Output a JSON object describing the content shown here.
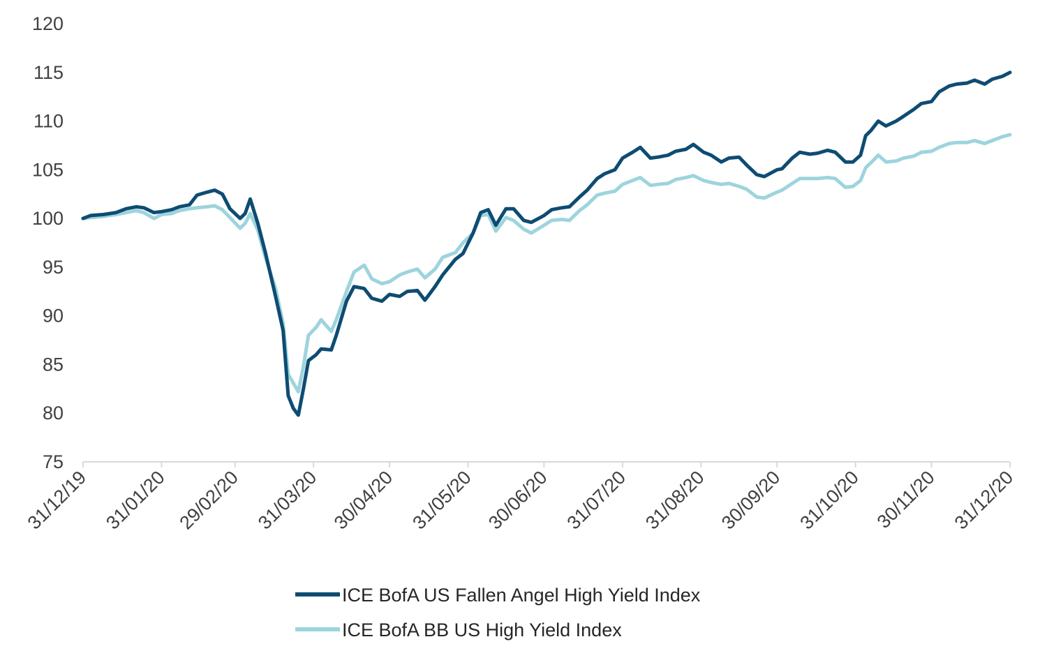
{
  "chart_data": {
    "type": "line",
    "title": "",
    "xlabel": "",
    "ylabel": "",
    "ylim": [
      75,
      120
    ],
    "yticks": [
      75,
      80,
      85,
      90,
      95,
      100,
      105,
      110,
      115,
      120
    ],
    "x_tick_labels": [
      "31/12/19",
      "31/01/20",
      "29/02/20",
      "31/03/20",
      "30/04/20",
      "31/05/20",
      "30/06/20",
      "31/07/20",
      "31/08/20",
      "30/09/20",
      "31/10/20",
      "30/11/20",
      "31/12/20"
    ],
    "grid": false,
    "legend_position": "bottom",
    "series": [
      {
        "name": "ICE BofA US Fallen Angel High Yield Index",
        "color": "#0e4c72",
        "points": [
          [
            "2019-12-31",
            100.0
          ],
          [
            "2020-01-03",
            100.3
          ],
          [
            "2020-01-08",
            100.4
          ],
          [
            "2020-01-13",
            100.6
          ],
          [
            "2020-01-17",
            101.0
          ],
          [
            "2020-01-21",
            101.2
          ],
          [
            "2020-01-24",
            101.1
          ],
          [
            "2020-01-28",
            100.6
          ],
          [
            "2020-01-31",
            100.7
          ],
          [
            "2020-02-04",
            100.9
          ],
          [
            "2020-02-07",
            101.2
          ],
          [
            "2020-02-11",
            101.4
          ],
          [
            "2020-02-14",
            102.4
          ],
          [
            "2020-02-18",
            102.7
          ],
          [
            "2020-02-21",
            102.9
          ],
          [
            "2020-02-24",
            102.5
          ],
          [
            "2020-02-27",
            101.0
          ],
          [
            "2020-03-02",
            100.0
          ],
          [
            "2020-03-04",
            100.5
          ],
          [
            "2020-03-06",
            102.0
          ],
          [
            "2020-03-09",
            99.5
          ],
          [
            "2020-03-12",
            96.5
          ],
          [
            "2020-03-16",
            92.0
          ],
          [
            "2020-03-19",
            88.5
          ],
          [
            "2020-03-21",
            81.8
          ],
          [
            "2020-03-23",
            80.5
          ],
          [
            "2020-03-25",
            79.8
          ],
          [
            "2020-03-27",
            82.5
          ],
          [
            "2020-03-29",
            85.4
          ],
          [
            "2020-04-01",
            86.0
          ],
          [
            "2020-04-03",
            86.6
          ],
          [
            "2020-04-07",
            86.5
          ],
          [
            "2020-04-09",
            88.0
          ],
          [
            "2020-04-13",
            91.5
          ],
          [
            "2020-04-16",
            93.0
          ],
          [
            "2020-04-20",
            92.8
          ],
          [
            "2020-04-23",
            91.8
          ],
          [
            "2020-04-27",
            91.5
          ],
          [
            "2020-04-30",
            92.2
          ],
          [
            "2020-05-04",
            92.0
          ],
          [
            "2020-05-07",
            92.5
          ],
          [
            "2020-05-11",
            92.6
          ],
          [
            "2020-05-14",
            91.6
          ],
          [
            "2020-05-18",
            93.0
          ],
          [
            "2020-05-21",
            94.2
          ],
          [
            "2020-05-26",
            95.8
          ],
          [
            "2020-05-29",
            96.4
          ],
          [
            "2020-06-02",
            98.5
          ],
          [
            "2020-06-05",
            100.6
          ],
          [
            "2020-06-08",
            100.9
          ],
          [
            "2020-06-11",
            99.3
          ],
          [
            "2020-06-15",
            101.0
          ],
          [
            "2020-06-18",
            101.0
          ],
          [
            "2020-06-22",
            99.8
          ],
          [
            "2020-06-25",
            99.6
          ],
          [
            "2020-06-30",
            100.3
          ],
          [
            "2020-07-03",
            100.9
          ],
          [
            "2020-07-07",
            101.1
          ],
          [
            "2020-07-10",
            101.2
          ],
          [
            "2020-07-14",
            102.2
          ],
          [
            "2020-07-17",
            102.9
          ],
          [
            "2020-07-21",
            104.1
          ],
          [
            "2020-07-24",
            104.6
          ],
          [
            "2020-07-28",
            105.0
          ],
          [
            "2020-07-31",
            106.2
          ],
          [
            "2020-08-04",
            106.8
          ],
          [
            "2020-08-07",
            107.3
          ],
          [
            "2020-08-11",
            106.2
          ],
          [
            "2020-08-14",
            106.3
          ],
          [
            "2020-08-18",
            106.5
          ],
          [
            "2020-08-21",
            106.9
          ],
          [
            "2020-08-25",
            107.1
          ],
          [
            "2020-08-28",
            107.6
          ],
          [
            "2020-09-01",
            106.8
          ],
          [
            "2020-09-04",
            106.5
          ],
          [
            "2020-09-08",
            105.8
          ],
          [
            "2020-09-11",
            106.2
          ],
          [
            "2020-09-15",
            106.3
          ],
          [
            "2020-09-18",
            105.5
          ],
          [
            "2020-09-22",
            104.5
          ],
          [
            "2020-09-25",
            104.3
          ],
          [
            "2020-09-30",
            105.0
          ],
          [
            "2020-10-02",
            105.1
          ],
          [
            "2020-10-06",
            106.2
          ],
          [
            "2020-10-09",
            106.8
          ],
          [
            "2020-10-13",
            106.6
          ],
          [
            "2020-10-16",
            106.7
          ],
          [
            "2020-10-20",
            107.0
          ],
          [
            "2020-10-23",
            106.8
          ],
          [
            "2020-10-27",
            105.8
          ],
          [
            "2020-10-30",
            105.8
          ],
          [
            "2020-11-02",
            106.5
          ],
          [
            "2020-11-04",
            108.5
          ],
          [
            "2020-11-06",
            109.0
          ],
          [
            "2020-11-09",
            110.0
          ],
          [
            "2020-11-12",
            109.5
          ],
          [
            "2020-11-16",
            110.0
          ],
          [
            "2020-11-19",
            110.5
          ],
          [
            "2020-11-23",
            111.2
          ],
          [
            "2020-11-26",
            111.8
          ],
          [
            "2020-11-30",
            112.0
          ],
          [
            "2020-12-03",
            113.0
          ],
          [
            "2020-12-07",
            113.6
          ],
          [
            "2020-12-10",
            113.8
          ],
          [
            "2020-12-14",
            113.9
          ],
          [
            "2020-12-17",
            114.2
          ],
          [
            "2020-12-21",
            113.8
          ],
          [
            "2020-12-24",
            114.3
          ],
          [
            "2020-12-28",
            114.6
          ],
          [
            "2020-12-31",
            115.0
          ]
        ]
      },
      {
        "name": "ICE BofA BB US High Yield Index",
        "color": "#9dd4dd",
        "points": [
          [
            "2019-12-31",
            100.0
          ],
          [
            "2020-01-03",
            100.1
          ],
          [
            "2020-01-08",
            100.2
          ],
          [
            "2020-01-13",
            100.4
          ],
          [
            "2020-01-17",
            100.6
          ],
          [
            "2020-01-21",
            100.8
          ],
          [
            "2020-01-24",
            100.6
          ],
          [
            "2020-01-28",
            100.0
          ],
          [
            "2020-01-31",
            100.4
          ],
          [
            "2020-02-04",
            100.5
          ],
          [
            "2020-02-07",
            100.8
          ],
          [
            "2020-02-11",
            101.0
          ],
          [
            "2020-02-14",
            101.1
          ],
          [
            "2020-02-18",
            101.2
          ],
          [
            "2020-02-21",
            101.3
          ],
          [
            "2020-02-24",
            100.9
          ],
          [
            "2020-02-27",
            100.1
          ],
          [
            "2020-03-02",
            99.0
          ],
          [
            "2020-03-04",
            99.5
          ],
          [
            "2020-03-06",
            100.5
          ],
          [
            "2020-03-09",
            98.8
          ],
          [
            "2020-03-12",
            96.0
          ],
          [
            "2020-03-16",
            92.8
          ],
          [
            "2020-03-19",
            89.2
          ],
          [
            "2020-03-21",
            84.0
          ],
          [
            "2020-03-23",
            83.1
          ],
          [
            "2020-03-25",
            82.2
          ],
          [
            "2020-03-27",
            84.8
          ],
          [
            "2020-03-29",
            88.0
          ],
          [
            "2020-04-01",
            88.8
          ],
          [
            "2020-04-03",
            89.6
          ],
          [
            "2020-04-07",
            88.4
          ],
          [
            "2020-04-09",
            89.6
          ],
          [
            "2020-04-13",
            92.5
          ],
          [
            "2020-04-16",
            94.5
          ],
          [
            "2020-04-20",
            95.2
          ],
          [
            "2020-04-23",
            93.8
          ],
          [
            "2020-04-27",
            93.3
          ],
          [
            "2020-04-30",
            93.5
          ],
          [
            "2020-05-04",
            94.2
          ],
          [
            "2020-05-07",
            94.5
          ],
          [
            "2020-05-11",
            94.8
          ],
          [
            "2020-05-14",
            93.9
          ],
          [
            "2020-05-18",
            94.8
          ],
          [
            "2020-05-21",
            96.0
          ],
          [
            "2020-05-26",
            96.5
          ],
          [
            "2020-05-29",
            97.5
          ],
          [
            "2020-06-02",
            98.5
          ],
          [
            "2020-06-05",
            100.3
          ],
          [
            "2020-06-08",
            100.4
          ],
          [
            "2020-06-11",
            98.7
          ],
          [
            "2020-06-15",
            100.1
          ],
          [
            "2020-06-18",
            99.8
          ],
          [
            "2020-06-22",
            98.9
          ],
          [
            "2020-06-25",
            98.5
          ],
          [
            "2020-06-30",
            99.3
          ],
          [
            "2020-07-03",
            99.8
          ],
          [
            "2020-07-07",
            99.9
          ],
          [
            "2020-07-10",
            99.8
          ],
          [
            "2020-07-14",
            100.8
          ],
          [
            "2020-07-17",
            101.4
          ],
          [
            "2020-07-21",
            102.4
          ],
          [
            "2020-07-24",
            102.6
          ],
          [
            "2020-07-28",
            102.8
          ],
          [
            "2020-07-31",
            103.5
          ],
          [
            "2020-08-04",
            103.9
          ],
          [
            "2020-08-07",
            104.2
          ],
          [
            "2020-08-11",
            103.4
          ],
          [
            "2020-08-14",
            103.5
          ],
          [
            "2020-08-18",
            103.6
          ],
          [
            "2020-08-21",
            104.0
          ],
          [
            "2020-08-25",
            104.2
          ],
          [
            "2020-08-28",
            104.4
          ],
          [
            "2020-09-01",
            103.9
          ],
          [
            "2020-09-04",
            103.7
          ],
          [
            "2020-09-08",
            103.5
          ],
          [
            "2020-09-11",
            103.6
          ],
          [
            "2020-09-15",
            103.3
          ],
          [
            "2020-09-18",
            103.0
          ],
          [
            "2020-09-22",
            102.2
          ],
          [
            "2020-09-25",
            102.1
          ],
          [
            "2020-09-30",
            102.7
          ],
          [
            "2020-10-02",
            102.9
          ],
          [
            "2020-10-06",
            103.6
          ],
          [
            "2020-10-09",
            104.1
          ],
          [
            "2020-10-13",
            104.1
          ],
          [
            "2020-10-16",
            104.1
          ],
          [
            "2020-10-20",
            104.2
          ],
          [
            "2020-10-23",
            104.1
          ],
          [
            "2020-10-27",
            103.2
          ],
          [
            "2020-10-30",
            103.3
          ],
          [
            "2020-11-02",
            103.9
          ],
          [
            "2020-11-04",
            105.2
          ],
          [
            "2020-11-06",
            105.7
          ],
          [
            "2020-11-09",
            106.5
          ],
          [
            "2020-11-12",
            105.8
          ],
          [
            "2020-11-16",
            105.9
          ],
          [
            "2020-11-19",
            106.2
          ],
          [
            "2020-11-23",
            106.4
          ],
          [
            "2020-11-26",
            106.8
          ],
          [
            "2020-11-30",
            106.9
          ],
          [
            "2020-12-03",
            107.3
          ],
          [
            "2020-12-07",
            107.7
          ],
          [
            "2020-12-10",
            107.8
          ],
          [
            "2020-12-14",
            107.8
          ],
          [
            "2020-12-17",
            108.0
          ],
          [
            "2020-12-21",
            107.7
          ],
          [
            "2020-12-24",
            108.0
          ],
          [
            "2020-12-28",
            108.4
          ],
          [
            "2020-12-31",
            108.6
          ]
        ]
      }
    ]
  }
}
